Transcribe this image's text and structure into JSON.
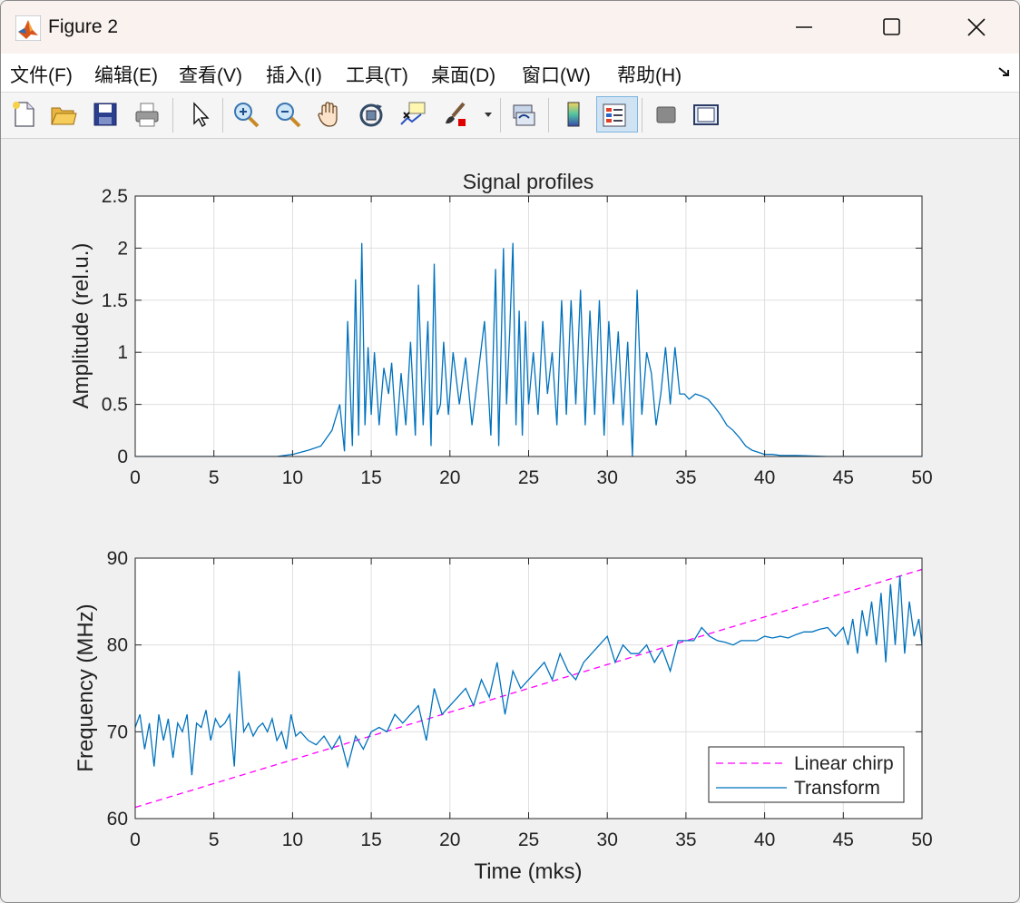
{
  "window": {
    "title": "Figure 2"
  },
  "menu": [
    {
      "label": "文件(F)"
    },
    {
      "label": "编辑(E)"
    },
    {
      "label": "查看(V)"
    },
    {
      "label": "插入(I)"
    },
    {
      "label": "工具(T)"
    },
    {
      "label": "桌面(D)"
    },
    {
      "label": "窗口(W)"
    },
    {
      "label": "帮助(H)"
    }
  ],
  "toolbar": {
    "items": [
      "new-figure-icon",
      "open-icon",
      "save-icon",
      "print-icon",
      "select-arrow-icon",
      "zoom-in-icon",
      "zoom-out-icon",
      "pan-hand-icon",
      "rotate-3d-icon",
      "data-cursor-icon",
      "brush-icon",
      "brush-dropdown-icon",
      "link-plot-icon",
      "colorbar-icon",
      "legend-icon",
      "hide-plot-tools-icon",
      "show-plot-tools-icon"
    ],
    "active": "legend-icon"
  },
  "colors": {
    "signal": "#0072bd",
    "chirp": "#ff00ff",
    "grid": "#dfdfdf",
    "axes_bg": "#ffffff",
    "figure_bg": "#f0f0f0"
  },
  "chart_data": [
    {
      "type": "line",
      "title": "Signal profiles",
      "xlabel": "",
      "ylabel": "Amplitude (rel.u.)",
      "xlim": [
        0,
        50
      ],
      "ylim": [
        0,
        2.5
      ],
      "xticks": [
        "0",
        "5",
        "10",
        "15",
        "20",
        "25",
        "30",
        "35",
        "40",
        "45",
        "50"
      ],
      "yticks": [
        "0",
        "0.5",
        "1",
        "1.5",
        "2",
        "2.5"
      ],
      "grid": true,
      "series": [
        {
          "color": "#0072bd",
          "x": [
            0,
            5,
            9,
            10,
            11,
            11.8,
            12.5,
            13,
            13.3,
            13.5,
            13.8,
            14.0,
            14.2,
            14.4,
            14.6,
            14.8,
            15.0,
            15.2,
            15.5,
            15.8,
            16.1,
            16.3,
            16.6,
            16.9,
            17.2,
            17.5,
            17.8,
            18.0,
            18.3,
            18.6,
            18.8,
            19.0,
            19.2,
            19.4,
            19.6,
            19.9,
            20.2,
            20.6,
            21.0,
            21.4,
            21.8,
            22.2,
            22.6,
            22.9,
            23.1,
            23.4,
            23.6,
            23.8,
            24.0,
            24.2,
            24.4,
            24.6,
            24.8,
            25.0,
            25.3,
            25.6,
            25.9,
            26.2,
            26.5,
            26.8,
            27.1,
            27.4,
            27.7,
            28.0,
            28.3,
            28.6,
            28.9,
            29.2,
            29.5,
            29.8,
            30.1,
            30.4,
            30.7,
            31.0,
            31.3,
            31.6,
            31.9,
            32.2,
            32.5,
            32.8,
            33.1,
            33.4,
            33.7,
            34.0,
            34.3,
            34.6,
            34.9,
            35.2,
            35.6,
            36.0,
            36.4,
            36.8,
            37.2,
            37.6,
            38.0,
            38.4,
            38.8,
            39.2,
            39.6,
            40.0,
            40.5,
            41,
            42,
            44,
            50
          ],
          "y": [
            0,
            0,
            0,
            0.02,
            0.06,
            0.1,
            0.25,
            0.5,
            0.05,
            1.3,
            0.1,
            1.7,
            0.2,
            2.05,
            0.3,
            1.05,
            0.4,
            1.0,
            0.3,
            0.85,
            0.6,
            0.9,
            0.2,
            0.8,
            0.3,
            1.1,
            0.2,
            1.65,
            0.3,
            1.3,
            0.1,
            1.85,
            0.4,
            0.5,
            1.1,
            0.4,
            1.0,
            0.5,
            0.95,
            0.3,
            0.8,
            1.3,
            0.2,
            1.8,
            0.1,
            2.0,
            0.5,
            1.2,
            2.05,
            0.3,
            1.4,
            0.2,
            1.3,
            0.5,
            1.0,
            0.4,
            1.3,
            0.6,
            1.0,
            0.3,
            1.5,
            0.4,
            1.5,
            0.5,
            1.6,
            0.3,
            1.4,
            0.4,
            1.5,
            0.2,
            1.3,
            0.5,
            1.2,
            0.3,
            1.1,
            0.0,
            1.6,
            0.4,
            1.0,
            0.8,
            0.3,
            0.6,
            1.05,
            0.5,
            1.05,
            0.6,
            0.6,
            0.55,
            0.6,
            0.58,
            0.55,
            0.48,
            0.4,
            0.3,
            0.25,
            0.18,
            0.1,
            0.06,
            0.04,
            0.02,
            0.02,
            0.01,
            0.01,
            0.0,
            0.0
          ]
        }
      ]
    },
    {
      "type": "line",
      "title": "",
      "xlabel": "Time (mks)",
      "ylabel": "Frequency (MHz)",
      "xlim": [
        0,
        50
      ],
      "ylim": [
        60,
        90
      ],
      "xticks": [
        "0",
        "5",
        "10",
        "15",
        "20",
        "25",
        "30",
        "35",
        "40",
        "45",
        "50"
      ],
      "yticks": [
        "60",
        "70",
        "80",
        "90"
      ],
      "grid": true,
      "legend": {
        "position": "bottom-right",
        "entries": [
          "Linear chirp",
          "Transform"
        ]
      },
      "series": [
        {
          "name": "Linear chirp",
          "style": "dashed",
          "color": "#ff00ff",
          "x": [
            0,
            50
          ],
          "y": [
            61.3,
            88.7
          ]
        },
        {
          "name": "Transform",
          "color": "#0072bd",
          "x": [
            0,
            0.3,
            0.6,
            0.9,
            1.2,
            1.5,
            1.8,
            2.1,
            2.4,
            2.7,
            3.0,
            3.3,
            3.6,
            3.9,
            4.2,
            4.5,
            4.8,
            5.1,
            5.4,
            5.7,
            6.0,
            6.3,
            6.6,
            6.9,
            7.2,
            7.5,
            7.8,
            8.1,
            8.4,
            8.7,
            9.0,
            9.3,
            9.6,
            9.9,
            10.2,
            10.5,
            11,
            11.5,
            12,
            12.5,
            13,
            13.5,
            14,
            14.5,
            15,
            15.5,
            16,
            16.5,
            17,
            17.5,
            18,
            18.5,
            19,
            19.5,
            20,
            20.5,
            21,
            21.5,
            22,
            22.5,
            23,
            23.5,
            24,
            24.5,
            25,
            25.5,
            26,
            26.5,
            27,
            27.5,
            28,
            28.5,
            29,
            29.5,
            30,
            30.5,
            31,
            31.5,
            32,
            32.5,
            33,
            33.5,
            34,
            34.5,
            35,
            35.5,
            36,
            36.5,
            37,
            37.5,
            38,
            38.5,
            39,
            39.5,
            40,
            40.5,
            41,
            41.5,
            42,
            42.5,
            43,
            43.5,
            44,
            44.5,
            45,
            45.3,
            45.6,
            45.9,
            46.2,
            46.5,
            46.8,
            47.1,
            47.4,
            47.7,
            48.0,
            48.3,
            48.6,
            48.9,
            49.2,
            49.5,
            49.8,
            50
          ],
          "y": [
            70.5,
            72,
            68,
            71,
            66,
            72,
            69,
            71.5,
            67,
            71,
            70,
            72,
            65,
            71,
            70.5,
            72.5,
            69,
            71.5,
            70.5,
            71,
            72,
            66,
            77,
            70,
            71,
            69.5,
            70.5,
            71,
            70,
            71.5,
            69,
            70,
            68,
            72,
            69.5,
            70,
            69,
            68.5,
            69.5,
            68,
            69.5,
            66,
            69.5,
            68,
            70,
            70.5,
            70,
            72,
            71,
            72,
            73,
            69,
            75,
            72,
            73,
            74,
            75,
            73,
            76,
            74,
            78,
            72,
            77,
            75,
            76,
            77,
            78,
            76,
            79,
            77,
            76,
            78,
            79,
            80,
            81,
            78,
            80,
            79,
            79,
            80,
            78,
            79.5,
            77,
            80.5,
            80.5,
            80.5,
            82,
            81,
            80.5,
            80.3,
            80,
            80.5,
            80.5,
            80.5,
            81,
            80.8,
            81,
            80.8,
            81.2,
            81.5,
            81.5,
            81.8,
            82,
            81,
            82,
            80,
            83,
            79,
            84,
            81,
            85,
            80,
            86,
            78,
            87,
            80,
            88,
            79,
            85,
            81,
            83,
            80
          ]
        }
      ]
    }
  ]
}
